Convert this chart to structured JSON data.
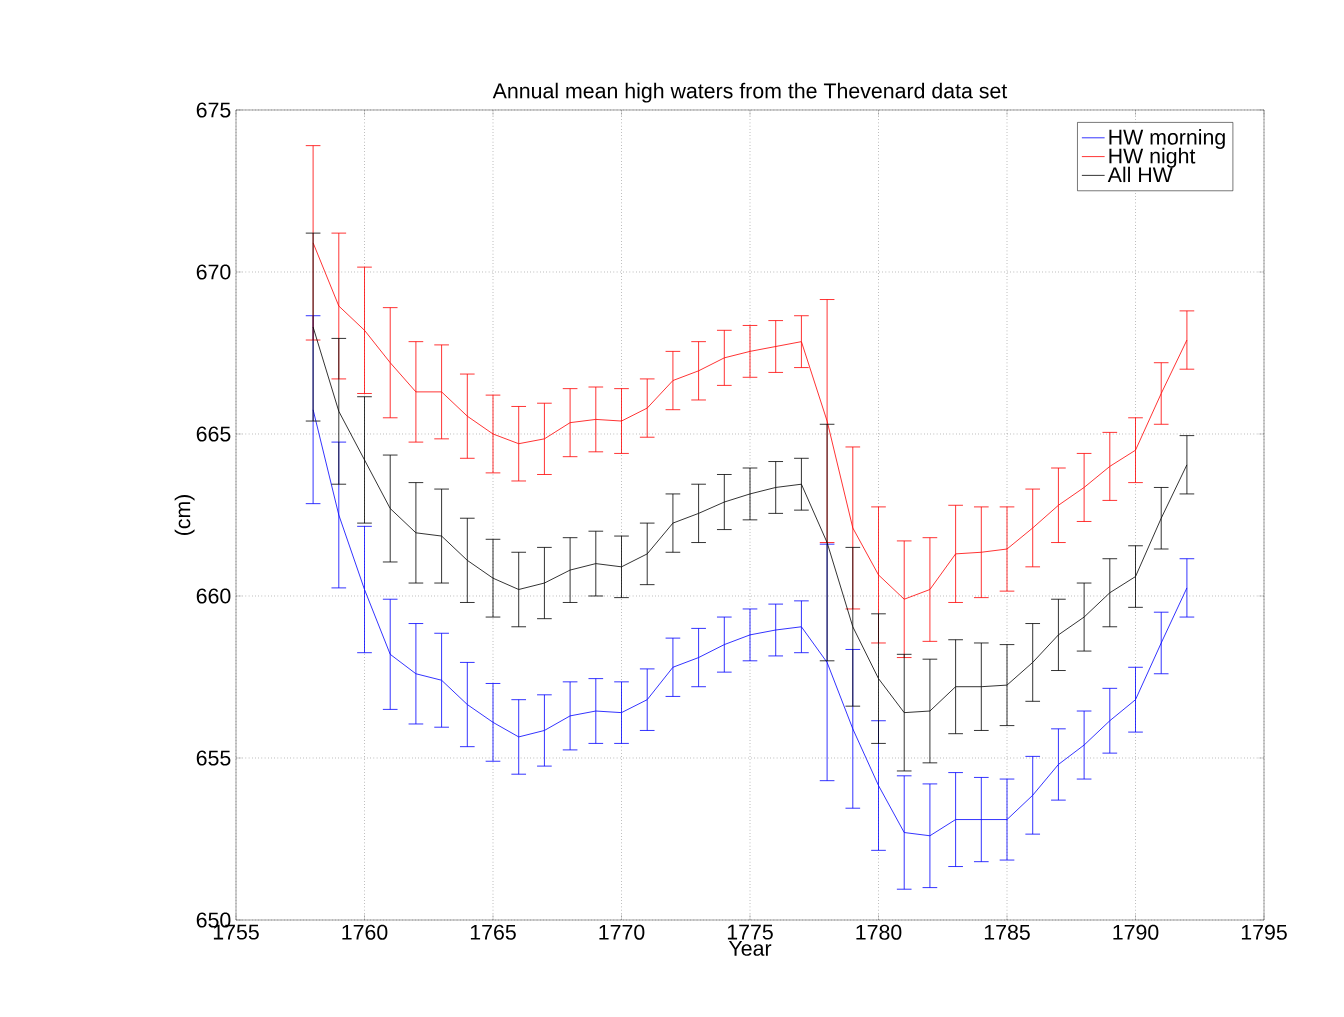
{
  "chart_data": {
    "type": "line",
    "title": "Annual mean high waters from the Thevenard data set",
    "xlabel": "Year",
    "ylabel": "(cm)",
    "x": [
      1758,
      1759,
      1760,
      1761,
      1762,
      1763,
      1764,
      1765,
      1766,
      1767,
      1768,
      1769,
      1770,
      1771,
      1772,
      1773,
      1774,
      1775,
      1776,
      1777,
      1778,
      1779,
      1780,
      1781,
      1782,
      1783,
      1784,
      1785,
      1786,
      1787,
      1788,
      1789,
      1790,
      1791,
      1792
    ],
    "series": [
      {
        "name": "HW morning",
        "color": "#0000ff",
        "values": [
          665.75,
          662.5,
          660.2,
          658.2,
          657.6,
          657.4,
          656.65,
          656.1,
          655.65,
          655.85,
          656.3,
          656.45,
          656.4,
          656.8,
          657.8,
          658.1,
          658.5,
          658.8,
          658.95,
          659.05,
          657.95,
          655.9,
          654.15,
          652.7,
          652.6,
          653.1,
          653.1,
          653.1,
          653.85,
          654.8,
          655.4,
          656.15,
          656.8,
          658.55,
          660.25
        ],
        "errors": [
          2.9,
          2.25,
          1.95,
          1.7,
          1.55,
          1.45,
          1.3,
          1.2,
          1.15,
          1.1,
          1.05,
          1.0,
          0.95,
          0.95,
          0.9,
          0.9,
          0.85,
          0.8,
          0.8,
          0.8,
          3.65,
          2.45,
          2.0,
          1.75,
          1.6,
          1.45,
          1.3,
          1.25,
          1.2,
          1.1,
          1.05,
          1.0,
          1.0,
          0.95,
          0.9
        ]
      },
      {
        "name": "HW night",
        "color": "#ff0000",
        "values": [
          670.9,
          668.95,
          668.2,
          667.2,
          666.3,
          666.3,
          665.55,
          665.0,
          664.7,
          664.85,
          665.35,
          665.45,
          665.4,
          665.8,
          666.65,
          666.95,
          667.35,
          667.55,
          667.7,
          667.85,
          665.4,
          662.1,
          660.65,
          659.9,
          660.2,
          661.3,
          661.35,
          661.45,
          662.1,
          662.8,
          663.35,
          664.0,
          664.5,
          666.25,
          667.9
        ],
        "errors": [
          3.0,
          2.25,
          1.95,
          1.7,
          1.55,
          1.45,
          1.3,
          1.2,
          1.15,
          1.1,
          1.05,
          1.0,
          1.0,
          0.9,
          0.9,
          0.9,
          0.85,
          0.8,
          0.8,
          0.8,
          3.75,
          2.5,
          2.1,
          1.8,
          1.6,
          1.5,
          1.4,
          1.3,
          1.2,
          1.15,
          1.05,
          1.05,
          1.0,
          0.95,
          0.9
        ]
      },
      {
        "name": "All HW",
        "color": "#000000",
        "values": [
          668.3,
          665.7,
          664.2,
          662.7,
          661.95,
          661.85,
          661.1,
          660.55,
          660.2,
          660.4,
          660.8,
          661.0,
          660.9,
          661.3,
          662.25,
          662.55,
          662.9,
          663.15,
          663.35,
          663.45,
          661.65,
          659.05,
          657.45,
          656.4,
          656.45,
          657.2,
          657.2,
          657.25,
          657.95,
          658.8,
          659.35,
          660.1,
          660.6,
          662.4,
          664.05
        ],
        "errors": [
          2.9,
          2.25,
          1.95,
          1.65,
          1.55,
          1.45,
          1.3,
          1.2,
          1.15,
          1.1,
          1.0,
          1.0,
          0.95,
          0.95,
          0.9,
          0.9,
          0.85,
          0.8,
          0.8,
          0.8,
          3.65,
          2.45,
          2.0,
          1.8,
          1.6,
          1.45,
          1.35,
          1.25,
          1.2,
          1.1,
          1.05,
          1.05,
          0.95,
          0.95,
          0.9
        ]
      }
    ],
    "xlim": [
      1755,
      1795
    ],
    "xticks": [
      1755,
      1760,
      1765,
      1770,
      1775,
      1780,
      1785,
      1790,
      1795
    ],
    "ylim": [
      650,
      675
    ],
    "yticks": [
      650,
      655,
      660,
      665,
      670,
      675
    ],
    "grid": true,
    "legend": "top right",
    "marker": "none",
    "line_style": "solid"
  }
}
